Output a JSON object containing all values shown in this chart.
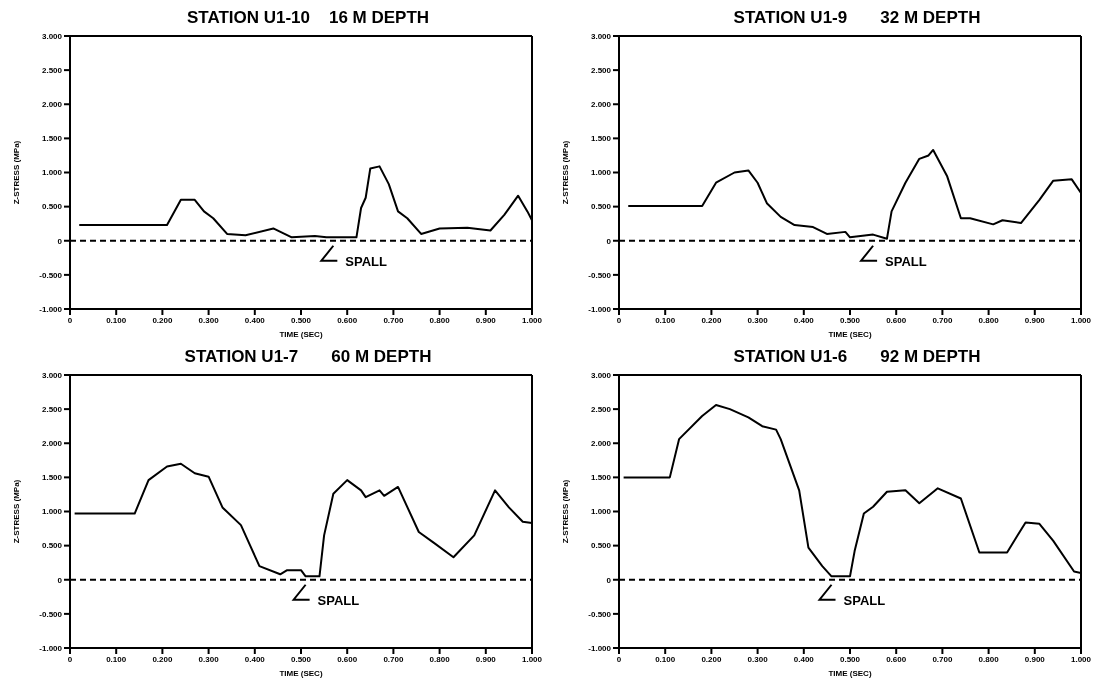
{
  "chart_data": [
    {
      "type": "line",
      "title": "STATION U1-10    16 M DEPTH",
      "xlabel": "TIME (SEC)",
      "ylabel": "Z-STRESS (MPa)",
      "xlim": [
        0,
        1
      ],
      "ylim": [
        -1,
        3
      ],
      "xticks": [
        {
          "value": 0,
          "label": "0"
        },
        {
          "value": 0.1,
          "label": "0.100"
        },
        {
          "value": 0.2,
          "label": "0.200"
        },
        {
          "value": 0.3,
          "label": "0.300"
        },
        {
          "value": 0.4,
          "label": "0.400"
        },
        {
          "value": 0.5,
          "label": "0.500"
        },
        {
          "value": 0.6,
          "label": "0.600"
        },
        {
          "value": 0.7,
          "label": "0.700"
        },
        {
          "value": 0.8,
          "label": "0.800"
        },
        {
          "value": 0.9,
          "label": "0.900"
        },
        {
          "value": 1,
          "label": "1.000"
        }
      ],
      "yticks": [
        {
          "value": -1,
          "label": "-1.000"
        },
        {
          "value": -0.5,
          "label": "-0.500"
        },
        {
          "value": 0,
          "label": "0"
        },
        {
          "value": 0.5,
          "label": "0.500"
        },
        {
          "value": 1,
          "label": "1.000"
        },
        {
          "value": 1.5,
          "label": "1.500"
        },
        {
          "value": 2,
          "label": "2.000"
        },
        {
          "value": 2.5,
          "label": "2.500"
        },
        {
          "value": 3,
          "label": "3.000"
        }
      ],
      "marker": "none",
      "line_style": "solid",
      "ref_lines": [
        {
          "axis": "y",
          "value": 0,
          "line_style": "dashed"
        }
      ],
      "annotations": [
        {
          "text": "SPALL",
          "x": 0.57,
          "y": 0
        }
      ],
      "series": [
        {
          "color": "#000000",
          "x": [
            0.02,
            0.21,
            0.24,
            0.27,
            0.29,
            0.31,
            0.34,
            0.38,
            0.44,
            0.48,
            0.53,
            0.555,
            0.62,
            0.63,
            0.64,
            0.65,
            0.67,
            0.69,
            0.71,
            0.73,
            0.76,
            0.8,
            0.86,
            0.91,
            0.94,
            0.97,
            0.99,
            1
          ],
          "values": [
            0.23,
            0.23,
            0.6,
            0.6,
            0.43,
            0.33,
            0.1,
            0.08,
            0.18,
            0.05,
            0.07,
            0.05,
            0.05,
            0.48,
            0.63,
            1.06,
            1.09,
            0.83,
            0.43,
            0.33,
            0.1,
            0.18,
            0.19,
            0.15,
            0.38,
            0.66,
            0.43,
            0.3
          ]
        }
      ]
    },
    {
      "type": "line",
      "title": "STATION U1-9       32 M DEPTH",
      "xlabel": "TIME (SEC)",
      "ylabel": "Z-STRESS (MPa)",
      "xlim": [
        0,
        1
      ],
      "ylim": [
        -1,
        3
      ],
      "xticks": [
        {
          "value": 0,
          "label": "0"
        },
        {
          "value": 0.1,
          "label": "0.100"
        },
        {
          "value": 0.2,
          "label": "0.200"
        },
        {
          "value": 0.3,
          "label": "0.300"
        },
        {
          "value": 0.4,
          "label": "0.400"
        },
        {
          "value": 0.5,
          "label": "0.500"
        },
        {
          "value": 0.6,
          "label": "0.600"
        },
        {
          "value": 0.7,
          "label": "0.700"
        },
        {
          "value": 0.8,
          "label": "0.800"
        },
        {
          "value": 0.9,
          "label": "0.900"
        },
        {
          "value": 1,
          "label": "1.000"
        }
      ],
      "yticks": [
        {
          "value": -1,
          "label": "-1.000"
        },
        {
          "value": -0.5,
          "label": "-0.500"
        },
        {
          "value": 0,
          "label": "0"
        },
        {
          "value": 0.5,
          "label": "0.500"
        },
        {
          "value": 1,
          "label": "1.000"
        },
        {
          "value": 1.5,
          "label": "1.500"
        },
        {
          "value": 2,
          "label": "2.000"
        },
        {
          "value": 2.5,
          "label": "2.500"
        },
        {
          "value": 3,
          "label": "3.000"
        }
      ],
      "marker": "none",
      "line_style": "solid",
      "ref_lines": [
        {
          "axis": "y",
          "value": 0,
          "line_style": "dashed"
        }
      ],
      "annotations": [
        {
          "text": "SPALL",
          "x": 0.55,
          "y": 0
        }
      ],
      "series": [
        {
          "color": "#000000",
          "x": [
            0.02,
            0.18,
            0.21,
            0.25,
            0.28,
            0.3,
            0.32,
            0.35,
            0.38,
            0.42,
            0.45,
            0.49,
            0.5,
            0.55,
            0.58,
            0.59,
            0.62,
            0.65,
            0.67,
            0.68,
            0.71,
            0.74,
            0.76,
            0.81,
            0.83,
            0.87,
            0.91,
            0.94,
            0.98,
            1
          ],
          "values": [
            0.51,
            0.51,
            0.85,
            1.0,
            1.03,
            0.85,
            0.55,
            0.35,
            0.23,
            0.2,
            0.1,
            0.13,
            0.05,
            0.09,
            0.03,
            0.43,
            0.85,
            1.2,
            1.25,
            1.33,
            0.95,
            0.33,
            0.33,
            0.24,
            0.3,
            0.26,
            0.6,
            0.88,
            0.9,
            0.7
          ]
        }
      ]
    },
    {
      "type": "line",
      "title": "STATION U1-7       60 M DEPTH",
      "xlabel": "TIME (SEC)",
      "ylabel": "Z-STRESS (MPa)",
      "xlim": [
        0,
        1
      ],
      "ylim": [
        -1,
        3
      ],
      "xticks": [
        {
          "value": 0,
          "label": "0"
        },
        {
          "value": 0.1,
          "label": "0.100"
        },
        {
          "value": 0.2,
          "label": "0.200"
        },
        {
          "value": 0.3,
          "label": "0.300"
        },
        {
          "value": 0.4,
          "label": "0.400"
        },
        {
          "value": 0.5,
          "label": "0.500"
        },
        {
          "value": 0.6,
          "label": "0.600"
        },
        {
          "value": 0.7,
          "label": "0.700"
        },
        {
          "value": 0.8,
          "label": "0.800"
        },
        {
          "value": 0.9,
          "label": "0.900"
        },
        {
          "value": 1,
          "label": "1.000"
        }
      ],
      "yticks": [
        {
          "value": -1,
          "label": "-1.000"
        },
        {
          "value": -0.5,
          "label": "-0.500"
        },
        {
          "value": 0,
          "label": "0"
        },
        {
          "value": 0.5,
          "label": "0.500"
        },
        {
          "value": 1,
          "label": "1.000"
        },
        {
          "value": 1.5,
          "label": "1.500"
        },
        {
          "value": 2,
          "label": "2.000"
        },
        {
          "value": 2.5,
          "label": "2.500"
        },
        {
          "value": 3,
          "label": "3.000"
        }
      ],
      "marker": "none",
      "line_style": "solid",
      "ref_lines": [
        {
          "axis": "y",
          "value": 0,
          "line_style": "dashed"
        }
      ],
      "annotations": [
        {
          "text": "SPALL",
          "x": 0.51,
          "y": 0
        }
      ],
      "series": [
        {
          "color": "#000000",
          "x": [
            0.01,
            0.14,
            0.17,
            0.21,
            0.24,
            0.27,
            0.3,
            0.33,
            0.37,
            0.39,
            0.41,
            0.455,
            0.47,
            0.5,
            0.51,
            0.54,
            0.55,
            0.57,
            0.6,
            0.63,
            0.64,
            0.67,
            0.68,
            0.71,
            0.755,
            0.79,
            0.83,
            0.875,
            0.92,
            0.95,
            0.98,
            1
          ],
          "values": [
            0.97,
            0.97,
            1.46,
            1.66,
            1.7,
            1.56,
            1.51,
            1.06,
            0.8,
            0.5,
            0.2,
            0.08,
            0.14,
            0.14,
            0.05,
            0.05,
            0.65,
            1.26,
            1.46,
            1.31,
            1.21,
            1.31,
            1.23,
            1.36,
            0.7,
            0.53,
            0.33,
            0.65,
            1.31,
            1.06,
            0.85,
            0.83
          ]
        }
      ]
    },
    {
      "type": "line",
      "title": "STATION U1-6       92 M DEPTH",
      "xlabel": "TIME (SEC)",
      "ylabel": "Z-STRESS (MPa)",
      "xlim": [
        0,
        1
      ],
      "ylim": [
        -1,
        3
      ],
      "xticks": [
        {
          "value": 0,
          "label": "0"
        },
        {
          "value": 0.1,
          "label": "0.100"
        },
        {
          "value": 0.2,
          "label": "0.200"
        },
        {
          "value": 0.3,
          "label": "0.300"
        },
        {
          "value": 0.4,
          "label": "0.400"
        },
        {
          "value": 0.5,
          "label": "0.500"
        },
        {
          "value": 0.6,
          "label": "0.600"
        },
        {
          "value": 0.7,
          "label": "0.700"
        },
        {
          "value": 0.8,
          "label": "0.800"
        },
        {
          "value": 0.9,
          "label": "0.900"
        },
        {
          "value": 1,
          "label": "1.000"
        }
      ],
      "yticks": [
        {
          "value": -1,
          "label": "-1.000"
        },
        {
          "value": -0.5,
          "label": "-0.500"
        },
        {
          "value": 0,
          "label": "0"
        },
        {
          "value": 0.5,
          "label": "0.500"
        },
        {
          "value": 1,
          "label": "1.000"
        },
        {
          "value": 1.5,
          "label": "1.500"
        },
        {
          "value": 2,
          "label": "2.000"
        },
        {
          "value": 2.5,
          "label": "2.500"
        },
        {
          "value": 3,
          "label": "3.000"
        }
      ],
      "marker": "none",
      "line_style": "solid",
      "ref_lines": [
        {
          "axis": "y",
          "value": 0,
          "line_style": "dashed"
        }
      ],
      "annotations": [
        {
          "text": "SPALL",
          "x": 0.46,
          "y": 0
        }
      ],
      "series": [
        {
          "color": "#000000",
          "x": [
            0.01,
            0.11,
            0.13,
            0.18,
            0.21,
            0.24,
            0.28,
            0.31,
            0.34,
            0.35,
            0.39,
            0.41,
            0.44,
            0.46,
            0.5,
            0.51,
            0.53,
            0.55,
            0.58,
            0.62,
            0.65,
            0.69,
            0.74,
            0.78,
            0.84,
            0.88,
            0.91,
            0.94,
            0.985,
            1
          ],
          "values": [
            1.5,
            1.5,
            2.06,
            2.4,
            2.56,
            2.5,
            2.38,
            2.25,
            2.2,
            2.06,
            1.31,
            0.47,
            0.2,
            0.05,
            0.05,
            0.42,
            0.97,
            1.07,
            1.29,
            1.31,
            1.12,
            1.34,
            1.19,
            0.4,
            0.4,
            0.84,
            0.82,
            0.57,
            0.12,
            0.1
          ]
        }
      ]
    }
  ]
}
